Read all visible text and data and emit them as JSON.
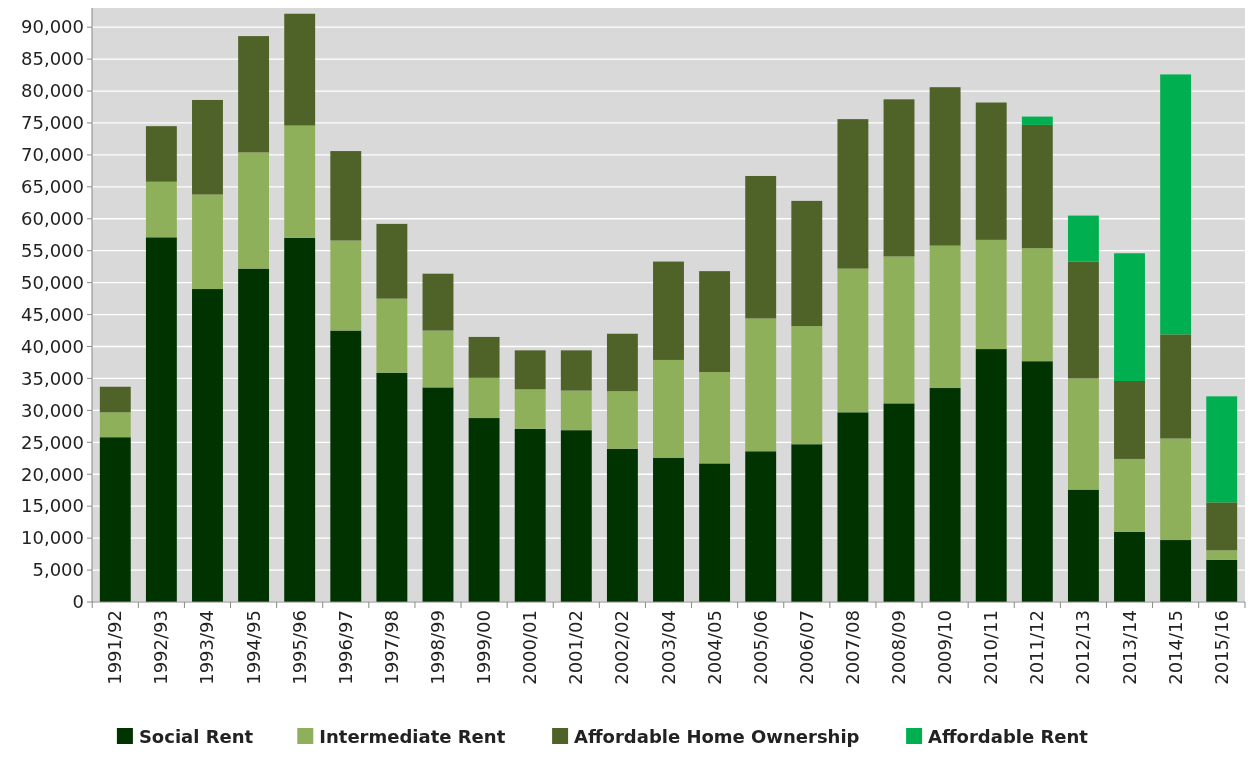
{
  "chart_data": {
    "type": "bar",
    "stacked": true,
    "categories": [
      "1991/92",
      "1992/93",
      "1993/94",
      "1994/95",
      "1995/96",
      "1996/97",
      "1997/98",
      "1998/99",
      "1999/00",
      "2000/01",
      "2001/02",
      "2002/02",
      "2003/04",
      "2004/05",
      "2005/06",
      "2006/07",
      "2007/08",
      "2008/09",
      "2009/10",
      "2010/11",
      "2011/12",
      "2012/13",
      "2013/14",
      "2014/15",
      "2015/16"
    ],
    "series": [
      {
        "name": "Social Rent",
        "color": "#003300",
        "values": [
          25800,
          57100,
          49000,
          52200,
          57000,
          42500,
          35900,
          33600,
          28800,
          27100,
          26900,
          24000,
          22600,
          21700,
          23600,
          24700,
          29700,
          31100,
          33500,
          39600,
          37700,
          17600,
          11000,
          9700,
          6600
        ]
      },
      {
        "name": "Intermediate Rent",
        "color": "#8fb05a",
        "values": [
          3900,
          8700,
          14800,
          18200,
          17600,
          14100,
          11600,
          8900,
          6300,
          6200,
          6200,
          9000,
          15300,
          14300,
          20800,
          18500,
          22500,
          23000,
          22300,
          17100,
          17700,
          17400,
          11400,
          15900,
          1500
        ]
      },
      {
        "name": "Affordable Home Ownership",
        "color": "#4f6228",
        "values": [
          4000,
          8700,
          14800,
          18200,
          17500,
          14000,
          11700,
          8900,
          6400,
          6100,
          6300,
          9000,
          15400,
          15800,
          22300,
          19600,
          23400,
          24600,
          24800,
          21500,
          19300,
          18300,
          12200,
          16300,
          7500
        ]
      },
      {
        "name": "Affordable Rent",
        "color": "#00b050",
        "values": [
          null,
          null,
          null,
          null,
          null,
          null,
          null,
          null,
          null,
          null,
          null,
          null,
          null,
          null,
          null,
          null,
          null,
          null,
          null,
          null,
          1300,
          7200,
          20000,
          40700,
          16600
        ]
      }
    ],
    "ylim": [
      0,
      93000
    ],
    "yticks": [
      0,
      {
        "value": 5000,
        "label": "5,000"
      },
      {
        "value": 10000,
        "label": "10,000"
      },
      {
        "value": 15000,
        "label": "15,000"
      },
      {
        "value": 20000,
        "label": "20,000"
      },
      {
        "value": 25000,
        "label": "25,000"
      },
      {
        "value": 30000,
        "label": "30,000"
      },
      {
        "value": 35000,
        "label": "35,000"
      },
      {
        "value": 40000,
        "label": "40,000"
      },
      {
        "value": 45000,
        "label": "45,000"
      },
      {
        "value": 50000,
        "label": "50,000"
      },
      {
        "value": 55000,
        "label": "55,000"
      },
      {
        "value": 60000,
        "label": "60,000"
      },
      {
        "value": 65000,
        "label": "65,000"
      },
      {
        "value": 70000,
        "label": "70,000"
      },
      {
        "value": 75000,
        "label": "75,000"
      },
      {
        "value": 80000,
        "label": "80,000"
      },
      {
        "value": 85000,
        "label": "85,000"
      },
      {
        "value": 90000,
        "label": "90,000"
      }
    ],
    "grid": "y",
    "legend": "bottom"
  }
}
